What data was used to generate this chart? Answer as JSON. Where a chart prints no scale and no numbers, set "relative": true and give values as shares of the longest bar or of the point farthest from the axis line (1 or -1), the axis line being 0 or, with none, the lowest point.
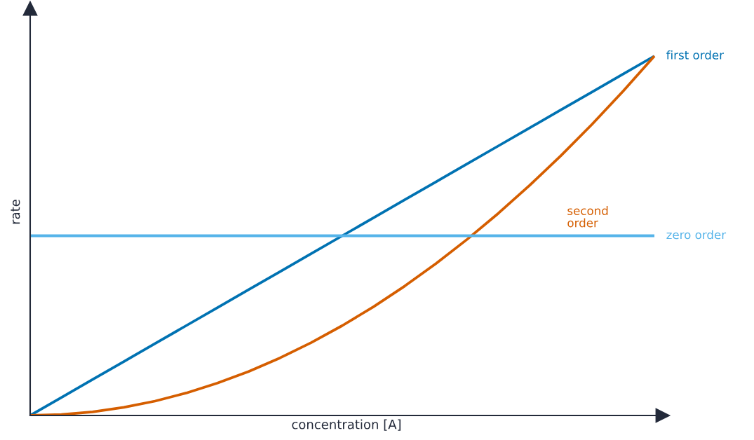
{
  "chart_data": {
    "type": "line",
    "relative": true,
    "xlabel": "concentration [A]",
    "ylabel": "rate",
    "legend": false,
    "marker": "none",
    "line_style": "solid",
    "categories": [
      null,
      null,
      null,
      null,
      null,
      null,
      null,
      null,
      null,
      null,
      null,
      null,
      null,
      null,
      null,
      null,
      null,
      null,
      null,
      null,
      null
    ],
    "series": [
      {
        "name": "first order",
        "color": "#0072b2",
        "values": [
          0,
          0.05,
          0.1,
          0.15,
          0.2,
          0.25,
          0.3,
          0.35,
          0.4,
          0.45,
          0.5,
          0.55,
          0.6,
          0.65,
          0.7,
          0.75,
          0.8,
          0.85,
          0.9,
          0.95,
          1
        ]
      },
      {
        "name": "second\norder",
        "color": "#d55e00",
        "values": [
          0,
          0.0025,
          0.01,
          0.0225,
          0.04,
          0.0625,
          0.09,
          0.1225,
          0.16,
          0.2025,
          0.25,
          0.3025,
          0.36,
          0.4225,
          0.49,
          0.5625,
          0.64,
          0.7225,
          0.81,
          0.9025,
          1
        ]
      },
      {
        "name": "zero order",
        "color": "#56b4e9",
        "values": [
          0.5,
          0.5,
          0.5,
          0.5,
          0.5,
          0.5,
          0.5,
          0.5,
          0.5,
          0.5,
          0.5,
          0.5,
          0.5,
          0.5,
          0.5,
          0.5,
          0.5,
          0.5,
          0.5,
          0.5,
          0.5
        ]
      }
    ]
  }
}
